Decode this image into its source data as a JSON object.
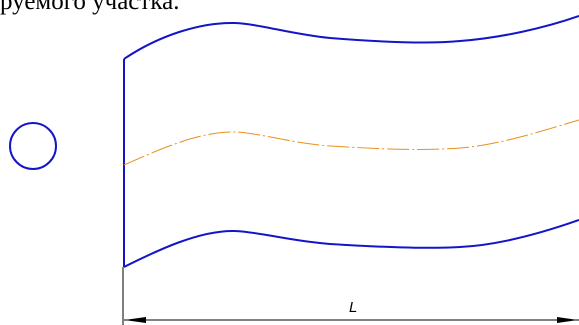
{
  "caption": "руемого участка.",
  "dimension": {
    "label": "L"
  },
  "colors": {
    "contour": "#1515c8",
    "axis": "#e8901e",
    "dimension": "#000000",
    "text": "#000000"
  },
  "icons": {
    "cross_section": "circle-section-icon"
  }
}
